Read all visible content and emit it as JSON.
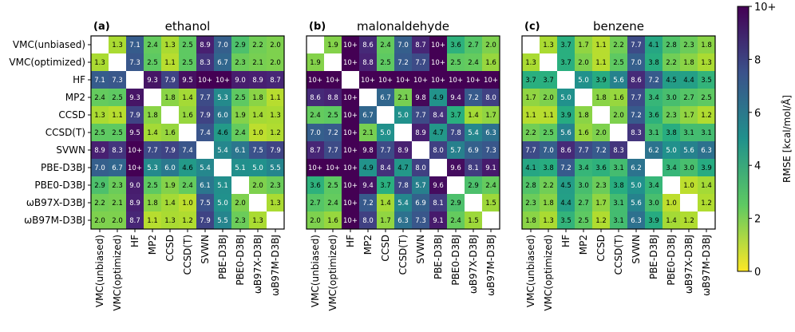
{
  "chart_data": {
    "type": "heatmap",
    "labels": [
      "VMC(unbiased)",
      "VMC(optimized)",
      "HF",
      "MP2",
      "CCSD",
      "CCSD(T)",
      "SVWN",
      "PBE-D3BJ",
      "PBE0-D3BJ",
      "ωB97X-D3BJ",
      "ωB97M-D3BJ"
    ],
    "panels": [
      {
        "tag": "(a)",
        "title": "ethanol",
        "cells": [
          [
            "",
            "1.3",
            "7.1",
            "2.4",
            "1.3",
            "2.5",
            "8.9",
            "7.0",
            "2.9",
            "2.2",
            "2.0"
          ],
          [
            "1.3",
            "",
            "7.3",
            "2.5",
            "1.1",
            "2.5",
            "8.3",
            "6.7",
            "2.3",
            "2.1",
            "2.0"
          ],
          [
            "7.1",
            "7.3",
            "",
            "9.3",
            "7.9",
            "9.5",
            "10+",
            "10+",
            "9.0",
            "8.9",
            "8.7"
          ],
          [
            "2.4",
            "2.5",
            "9.3",
            "",
            "1.8",
            "1.4",
            "7.7",
            "5.3",
            "2.5",
            "1.8",
            "1.1"
          ],
          [
            "1.3",
            "1.1",
            "7.9",
            "1.8",
            "",
            "1.6",
            "7.9",
            "6.0",
            "1.9",
            "1.4",
            "1.3"
          ],
          [
            "2.5",
            "2.5",
            "9.5",
            "1.4",
            "1.6",
            "",
            "7.4",
            "4.6",
            "2.4",
            "1.0",
            "1.2"
          ],
          [
            "8.9",
            "8.3",
            "10+",
            "7.7",
            "7.9",
            "7.4",
            "",
            "5.4",
            "6.1",
            "7.5",
            "7.9"
          ],
          [
            "7.0",
            "6.7",
            "10+",
            "5.3",
            "6.0",
            "4.6",
            "5.4",
            "",
            "5.1",
            "5.0",
            "5.5"
          ],
          [
            "2.9",
            "2.3",
            "9.0",
            "2.5",
            "1.9",
            "2.4",
            "6.1",
            "5.1",
            "",
            "2.0",
            "2.3"
          ],
          [
            "2.2",
            "2.1",
            "8.9",
            "1.8",
            "1.4",
            "1.0",
            "7.5",
            "5.0",
            "2.0",
            "",
            "1.3"
          ],
          [
            "2.0",
            "2.0",
            "8.7",
            "1.1",
            "1.3",
            "1.2",
            "7.9",
            "5.5",
            "2.3",
            "1.3",
            ""
          ]
        ]
      },
      {
        "tag": "(b)",
        "title": "malonaldehyde",
        "cells": [
          [
            "",
            "1.9",
            "10+",
            "8.6",
            "2.4",
            "7.0",
            "8.7",
            "10+",
            "3.6",
            "2.7",
            "2.0"
          ],
          [
            "1.9",
            "",
            "10+",
            "8.8",
            "2.5",
            "7.2",
            "7.7",
            "10+",
            "2.5",
            "2.4",
            "1.6"
          ],
          [
            "10+",
            "10+",
            "",
            "10+",
            "10+",
            "10+",
            "10+",
            "10+",
            "10+",
            "10+",
            "10+"
          ],
          [
            "8.6",
            "8.8",
            "10+",
            "",
            "6.7",
            "2.1",
            "9.8",
            "4.9",
            "9.4",
            "7.2",
            "8.0"
          ],
          [
            "2.4",
            "2.5",
            "10+",
            "6.7",
            "",
            "5.0",
            "7.7",
            "8.4",
            "3.7",
            "1.4",
            "1.7"
          ],
          [
            "7.0",
            "7.2",
            "10+",
            "2.1",
            "5.0",
            "",
            "8.9",
            "4.7",
            "7.8",
            "5.4",
            "6.3"
          ],
          [
            "8.7",
            "7.7",
            "10+",
            "9.8",
            "7.7",
            "8.9",
            "",
            "8.0",
            "5.7",
            "6.9",
            "7.3"
          ],
          [
            "10+",
            "10+",
            "10+",
            "4.9",
            "8.4",
            "4.7",
            "8.0",
            "",
            "9.6",
            "8.1",
            "9.1"
          ],
          [
            "3.6",
            "2.5",
            "10+",
            "9.4",
            "3.7",
            "7.8",
            "5.7",
            "9.6",
            "",
            "2.9",
            "2.4"
          ],
          [
            "2.7",
            "2.4",
            "10+",
            "7.2",
            "1.4",
            "5.4",
            "6.9",
            "8.1",
            "2.9",
            "",
            "1.5"
          ],
          [
            "2.0",
            "1.6",
            "10+",
            "8.0",
            "1.7",
            "6.3",
            "7.3",
            "9.1",
            "2.4",
            "1.5",
            ""
          ]
        ]
      },
      {
        "tag": "(c)",
        "title": "benzene",
        "cells": [
          [
            "",
            "1.3",
            "3.7",
            "1.7",
            "1.1",
            "2.2",
            "7.7",
            "4.1",
            "2.8",
            "2.3",
            "1.8"
          ],
          [
            "1.3",
            "",
            "3.7",
            "2.0",
            "1.1",
            "2.5",
            "7.0",
            "3.8",
            "2.2",
            "1.8",
            "1.3"
          ],
          [
            "3.7",
            "3.7",
            "",
            "5.0",
            "3.9",
            "5.6",
            "8.6",
            "7.2",
            "4.5",
            "4.4",
            "3.5"
          ],
          [
            "1.7",
            "2.0",
            "5.0",
            "",
            "1.8",
            "1.6",
            "7.7",
            "3.4",
            "3.0",
            "2.7",
            "2.5"
          ],
          [
            "1.1",
            "1.1",
            "3.9",
            "1.8",
            "",
            "2.0",
            "7.2",
            "3.6",
            "2.3",
            "1.7",
            "1.2"
          ],
          [
            "2.2",
            "2.5",
            "5.6",
            "1.6",
            "2.0",
            "",
            "8.3",
            "3.1",
            "3.8",
            "3.1",
            "3.1"
          ],
          [
            "7.7",
            "7.0",
            "8.6",
            "7.7",
            "7.2",
            "8.3",
            "",
            "6.2",
            "5.0",
            "5.6",
            "6.3"
          ],
          [
            "4.1",
            "3.8",
            "7.2",
            "3.4",
            "3.6",
            "3.1",
            "6.2",
            "",
            "3.4",
            "3.0",
            "3.9"
          ],
          [
            "2.8",
            "2.2",
            "4.5",
            "3.0",
            "2.3",
            "3.8",
            "5.0",
            "3.4",
            "",
            "1.0",
            "1.4"
          ],
          [
            "2.3",
            "1.8",
            "4.4",
            "2.7",
            "1.7",
            "3.1",
            "5.6",
            "3.0",
            "1.0",
            "",
            "1.2"
          ],
          [
            "1.8",
            "1.3",
            "3.5",
            "2.5",
            "1.2",
            "3.1",
            "6.3",
            "3.9",
            "1.4",
            "1.2",
            ""
          ]
        ]
      }
    ],
    "colorbar": {
      "label": "RMSE [kcal/mol/Å]",
      "range": [
        0,
        10
      ],
      "ticks": [
        "0",
        "2",
        "4",
        "6",
        "8",
        "10+"
      ],
      "tick_values": [
        0,
        2,
        4,
        6,
        8,
        10
      ],
      "colormap": "viridis_r"
    }
  }
}
